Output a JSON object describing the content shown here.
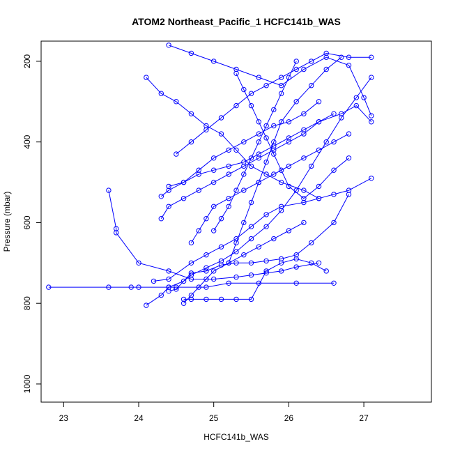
{
  "chart_data": {
    "type": "line",
    "title": "ATOM2 Northeast_Pacific_1 HCFC141b_WAS",
    "xlabel": "HCFC141b_WAS",
    "ylabel": "Pressure (mbar)",
    "xlim": [
      22.7,
      27.9
    ],
    "ylim": [
      1045,
      150
    ],
    "y_reversed": true,
    "grid": false,
    "legend": "none",
    "line_color": "#0000ff",
    "marker": "open-circle",
    "x_ticks": [
      23,
      24,
      25,
      26,
      27
    ],
    "y_ticks": [
      200,
      400,
      600,
      800,
      1000
    ],
    "series": [
      {
        "x": [
          24.1,
          24.3,
          24.4,
          24.6,
          24.7,
          24.9,
          25.1,
          25.3,
          25.5,
          25.7,
          25.9,
          26.1,
          26.3,
          26.5,
          26.7,
          26.9,
          27.1
        ],
        "y": [
          805,
          780,
          760,
          745,
          730,
          712,
          695,
          672,
          640,
          610,
          570,
          520,
          460,
          400,
          340,
          290,
          240
        ]
      },
      {
        "x": [
          22.8,
          23.6,
          23.9,
          24.0,
          24.4,
          24.5,
          24.9,
          25.2,
          25.6,
          26.1,
          26.6
        ],
        "y": [
          760,
          760,
          760,
          760,
          760,
          760,
          760,
          750,
          750,
          750,
          750
        ]
      },
      {
        "x": [
          24.6,
          24.7,
          24.9,
          25.1,
          25.3,
          25.5,
          25.7,
          25.9,
          26.1,
          26.3,
          26.5
        ],
        "y": [
          790,
          790,
          790,
          790,
          790,
          790,
          720,
          700,
          690,
          700,
          720
        ]
      },
      {
        "x": [
          23.6,
          23.7,
          23.7,
          24.0,
          24.4,
          24.7,
          25.0,
          25.3,
          25.5,
          25.7,
          25.9,
          26.1,
          26.4
        ],
        "y": [
          520,
          615,
          625,
          700,
          720,
          740,
          740,
          735,
          730,
          725,
          720,
          710,
          700
        ]
      },
      {
        "x": [
          24.2,
          24.4,
          24.7,
          24.9,
          25.1,
          25.3,
          25.5,
          25.7,
          25.9,
          26.2,
          26.4,
          26.6,
          26.8,
          27.1
        ],
        "y": [
          745,
          740,
          700,
          680,
          660,
          640,
          610,
          580,
          560,
          550,
          540,
          530,
          520,
          490
        ]
      },
      {
        "x": [
          24.4,
          24.5,
          24.7,
          24.9,
          25.1,
          25.3,
          25.5,
          25.7,
          25.9,
          26.1,
          26.3,
          26.6,
          26.8
        ],
        "y": [
          770,
          765,
          725,
          720,
          705,
          700,
          700,
          695,
          690,
          680,
          650,
          600,
          530
        ]
      },
      {
        "x": [
          24.3,
          24.4,
          24.6,
          24.8,
          25.0,
          25.2,
          25.4,
          25.6,
          25.8,
          26.0,
          26.2,
          26.4
        ],
        "y": [
          535,
          520,
          500,
          470,
          440,
          420,
          400,
          380,
          360,
          350,
          330,
          300
        ]
      },
      {
        "x": [
          24.1,
          24.3,
          24.5,
          24.7,
          24.9,
          25.1,
          25.3,
          25.5,
          25.7,
          25.9,
          26.2,
          26.4
        ],
        "y": [
          240,
          280,
          300,
          330,
          360,
          380,
          420,
          460,
          480,
          500,
          520,
          540
        ]
      },
      {
        "x": [
          24.3,
          24.4,
          24.6,
          24.8,
          25.0,
          25.2,
          25.4,
          25.6,
          25.8,
          26.0,
          26.2,
          26.4,
          26.6
        ],
        "y": [
          590,
          560,
          540,
          520,
          500,
          480,
          460,
          440,
          420,
          400,
          380,
          350,
          330
        ]
      },
      {
        "x": [
          24.6,
          24.7,
          24.8,
          24.9,
          25.0,
          25.2,
          25.4,
          25.6,
          25.8,
          26.0,
          26.2
        ],
        "y": [
          800,
          780,
          760,
          740,
          720,
          700,
          680,
          660,
          640,
          620,
          600
        ]
      },
      {
        "x": [
          25.0,
          25.1,
          25.2,
          25.3,
          25.4,
          25.5,
          25.6,
          25.7,
          25.8,
          25.9,
          26.0,
          26.1
        ],
        "y": [
          620,
          590,
          560,
          520,
          480,
          440,
          400,
          360,
          320,
          280,
          240,
          200
        ]
      },
      {
        "x": [
          24.7,
          24.8,
          24.9,
          25.0,
          25.2,
          25.4,
          25.6,
          25.8,
          26.0,
          26.2,
          26.4,
          26.6,
          26.8
        ],
        "y": [
          650,
          620,
          590,
          560,
          540,
          520,
          500,
          480,
          460,
          440,
          420,
          400,
          380
        ]
      },
      {
        "x": [
          25.2,
          25.3,
          25.4,
          25.5,
          25.6,
          25.7,
          25.8,
          25.9,
          26.1,
          26.3,
          26.5,
          26.7
        ],
        "y": [
          700,
          650,
          600,
          550,
          500,
          450,
          400,
          350,
          300,
          260,
          220,
          190
        ]
      },
      {
        "x": [
          24.5,
          24.7,
          24.9,
          25.1,
          25.3,
          25.5,
          25.7,
          25.9,
          26.1,
          26.3,
          26.5,
          26.8,
          27.1
        ],
        "y": [
          430,
          400,
          370,
          340,
          310,
          280,
          260,
          240,
          220,
          200,
          180,
          190,
          190
        ]
      },
      {
        "x": [
          25.3,
          25.4,
          25.5,
          25.6,
          25.7,
          25.8,
          25.9,
          26.0,
          26.2,
          26.4,
          26.6,
          26.8
        ],
        "y": [
          230,
          270,
          310,
          350,
          390,
          430,
          470,
          510,
          540,
          510,
          470,
          440
        ]
      },
      {
        "x": [
          24.4,
          24.6,
          24.8,
          25.0,
          25.2,
          25.4,
          25.6,
          25.8,
          26.0,
          26.2,
          26.4,
          26.7,
          26.9,
          27.1
        ],
        "y": [
          510,
          500,
          480,
          470,
          460,
          450,
          430,
          410,
          390,
          370,
          350,
          330,
          310,
          350
        ]
      },
      {
        "x": [
          24.4,
          24.7,
          25.0,
          25.3,
          25.6,
          25.9,
          26.2,
          26.5,
          26.8,
          27.0,
          27.1
        ],
        "y": [
          160,
          180,
          200,
          220,
          240,
          260,
          220,
          190,
          210,
          290,
          335
        ]
      }
    ]
  }
}
